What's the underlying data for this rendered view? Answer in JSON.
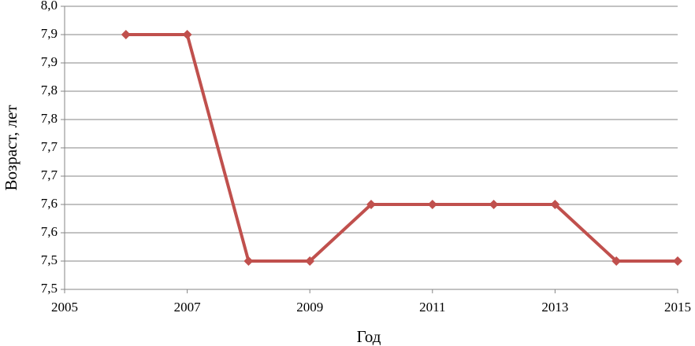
{
  "chart_data": {
    "type": "line",
    "x_label": "Год",
    "y_label": "Возраст, лет",
    "x": [
      2006,
      2007,
      2008,
      2009,
      2010,
      2011,
      2012,
      2013,
      2014,
      2015
    ],
    "series": [
      {
        "name": "Возраст",
        "color": "#c0504d",
        "values": [
          7.9,
          7.9,
          7.5,
          7.5,
          7.6,
          7.6,
          7.6,
          7.6,
          7.5,
          7.5
        ]
      }
    ],
    "xlim": [
      2005,
      2015
    ],
    "xticks": [
      2005,
      2007,
      2009,
      2011,
      2013,
      2015
    ],
    "ylim": [
      7.45,
      7.95
    ],
    "yticks": [
      {
        "value": 7.45,
        "label": "7,5"
      },
      {
        "value": 7.5,
        "label": "7,5"
      },
      {
        "value": 7.55,
        "label": "7,6"
      },
      {
        "value": 7.6,
        "label": "7,6"
      },
      {
        "value": 7.65,
        "label": "7,7"
      },
      {
        "value": 7.7,
        "label": "7,7"
      },
      {
        "value": 7.75,
        "label": "7,8"
      },
      {
        "value": 7.8,
        "label": "7,8"
      },
      {
        "value": 7.85,
        "label": "7,9"
      },
      {
        "value": 7.9,
        "label": "7,9"
      },
      {
        "value": 7.95,
        "label": "8,0"
      }
    ],
    "grid": true
  }
}
